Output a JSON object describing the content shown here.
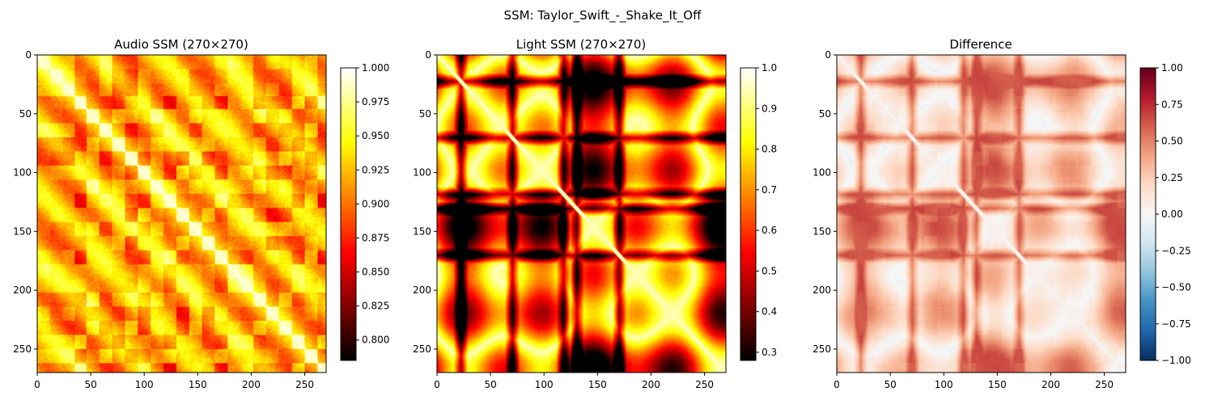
{
  "figure_title": "SSM: Taylor_Swift_-_Shake_It_Off",
  "chart_data": [
    {
      "type": "heatmap",
      "title": "Audio SSM (270×270)",
      "matrix_size": 270,
      "colormap": "hot",
      "xlim": [
        0,
        270
      ],
      "ylim": [
        270,
        0
      ],
      "x_ticks": [
        0,
        50,
        100,
        150,
        200,
        250
      ],
      "y_ticks": [
        0,
        50,
        100,
        150,
        200,
        250
      ],
      "colorbar": {
        "range": [
          0.785,
          1.0
        ],
        "ticks": [
          0.8,
          0.825,
          0.85,
          0.875,
          0.9,
          0.925,
          0.95,
          0.975,
          1.0
        ],
        "tick_labels": [
          "0.800",
          "0.825",
          "0.850",
          "0.875",
          "0.900",
          "0.925",
          "0.950",
          "0.975",
          "1.000"
        ]
      },
      "block_boundaries": [
        0,
        12,
        24,
        35,
        46,
        58,
        70,
        82,
        94,
        106,
        118,
        130,
        142,
        154,
        166,
        178,
        190,
        202,
        214,
        226,
        238,
        250,
        262,
        270
      ]
    },
    {
      "type": "heatmap",
      "title": "Light SSM (270×270)",
      "matrix_size": 270,
      "colormap": "hot",
      "xlim": [
        0,
        270
      ],
      "ylim": [
        270,
        0
      ],
      "x_ticks": [
        0,
        50,
        100,
        150,
        200,
        250
      ],
      "y_ticks": [
        0,
        50,
        100,
        150,
        200,
        250
      ],
      "colorbar": {
        "range": [
          0.28,
          1.0
        ],
        "ticks": [
          0.3,
          0.4,
          0.5,
          0.6,
          0.7,
          0.8,
          0.9,
          1.0
        ],
        "tick_labels": [
          "0.3",
          "0.4",
          "0.5",
          "0.6",
          "0.7",
          "0.8",
          "0.9",
          "1.0"
        ]
      },
      "dark_bands": [
        22,
        70,
        118,
        130,
        170
      ]
    },
    {
      "type": "heatmap",
      "title": "Difference",
      "matrix_size": 270,
      "colormap": "RdBu_r",
      "xlim": [
        0,
        270
      ],
      "ylim": [
        270,
        0
      ],
      "x_ticks": [
        0,
        50,
        100,
        150,
        200,
        250
      ],
      "y_ticks": [
        0,
        50,
        100,
        150,
        200,
        250
      ],
      "colorbar": {
        "range": [
          -1.0,
          1.0
        ],
        "ticks": [
          -1.0,
          -0.75,
          -0.5,
          -0.25,
          0.0,
          0.25,
          0.5,
          0.75,
          1.0
        ],
        "tick_labels": [
          "−1.00",
          "−0.75",
          "−0.50",
          "−0.25",
          "0.00",
          "0.25",
          "0.50",
          "0.75",
          "1.00"
        ]
      }
    }
  ]
}
